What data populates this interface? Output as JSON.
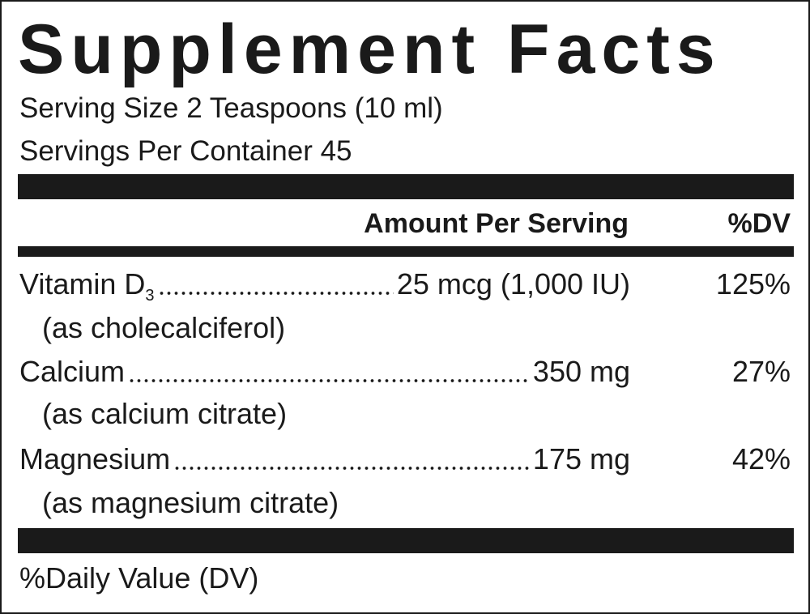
{
  "title": "Supplement Facts",
  "serving_size": "Serving Size 2 Teaspoons (10 ml)",
  "servings_per_container": "Servings Per Container 45",
  "header": {
    "amount": "Amount Per Serving",
    "dv": "%DV"
  },
  "nutrients": [
    {
      "name": "Vitamin D",
      "subscript": "3",
      "amount": "25 mcg (1,000 IU)",
      "dv": "125%",
      "source": "(as cholecalciferol)"
    },
    {
      "name": "Calcium ",
      "subscript": "",
      "amount": "350 mg",
      "dv": "27%",
      "source": "(as calcium citrate)"
    },
    {
      "name": "Magnesium ",
      "subscript": "",
      "amount": "175 mg",
      "dv": "42%",
      "source": "(as magnesium citrate)"
    }
  ],
  "footer": "%Daily Value (DV)"
}
